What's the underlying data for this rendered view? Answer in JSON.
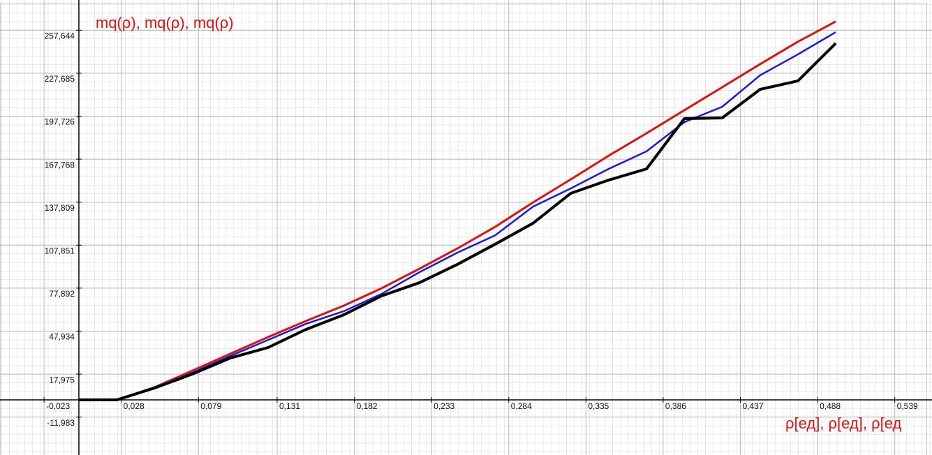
{
  "chart_data": {
    "type": "line",
    "title": "mq(ρ), mq(ρ), mq(ρ)",
    "x_label": "ρ[ед], ρ[ед], ρ[ед",
    "x": [
      0,
      0.025,
      0.05,
      0.075,
      0.1,
      0.125,
      0.15,
      0.175,
      0.2,
      0.225,
      0.25,
      0.275,
      0.3,
      0.325,
      0.35,
      0.375,
      0.4,
      0.425,
      0.45,
      0.475,
      0.5
    ],
    "series": [
      {
        "color": "#e01010",
        "width": 3,
        "values": [
          0,
          0,
          8.8,
          20.4,
          32.1,
          43.8,
          55,
          65.7,
          77.8,
          91.4,
          105.5,
          120.6,
          137.6,
          153.7,
          170.2,
          185.8,
          201.9,
          217.9,
          234,
          249.6,
          263.7
        ]
      },
      {
        "color": "#1818e0",
        "width": 2.5,
        "values": [
          0,
          0,
          8.3,
          18.9,
          30.6,
          41.8,
          53,
          61.8,
          73.9,
          89,
          102.6,
          114.7,
          134.7,
          147.4,
          161,
          173.2,
          193.6,
          204.3,
          226.2,
          240.8,
          256.3
        ]
      },
      {
        "color": "#000000",
        "width": 4,
        "values": [
          0,
          0,
          8.3,
          18,
          29.2,
          36.5,
          49.1,
          59.3,
          72.5,
          81.7,
          94.4,
          108.5,
          123.1,
          144,
          153.2,
          161,
          196,
          196.5,
          216.4,
          222.3,
          248.5
        ]
      }
    ],
    "xlim": [
      -0.0521,
      0.5636
    ],
    "ylim": [
      -38.4,
      278.7
    ],
    "xticks": [
      {
        "value": -0.023,
        "label": "-0,023"
      },
      {
        "value": 0.028,
        "label": "0,028"
      },
      {
        "value": 0.079,
        "label": "0,079"
      },
      {
        "value": 0.131,
        "label": "0,131"
      },
      {
        "value": 0.182,
        "label": "0,182"
      },
      {
        "value": 0.233,
        "label": "0,233"
      },
      {
        "value": 0.284,
        "label": "0,284"
      },
      {
        "value": 0.335,
        "label": "0,335"
      },
      {
        "value": 0.386,
        "label": "0,386"
      },
      {
        "value": 0.437,
        "label": "0,437"
      },
      {
        "value": 0.488,
        "label": "0,488"
      },
      {
        "value": 0.539,
        "label": "0,539"
      }
    ],
    "yticks": [
      {
        "value": -11.983,
        "label": "-11,983"
      },
      {
        "value": 17.975,
        "label": "17,975"
      },
      {
        "value": 47.934,
        "label": "47,934"
      },
      {
        "value": 77.892,
        "label": "77,892"
      },
      {
        "value": 107.851,
        "label": "107,851"
      },
      {
        "value": 137.809,
        "label": "137,809"
      },
      {
        "value": 167.768,
        "label": "167,768"
      },
      {
        "value": 197.726,
        "label": "197,726"
      },
      {
        "value": 227.685,
        "label": "227,685"
      },
      {
        "value": 257.644,
        "label": "257,644"
      }
    ],
    "grid": true
  }
}
